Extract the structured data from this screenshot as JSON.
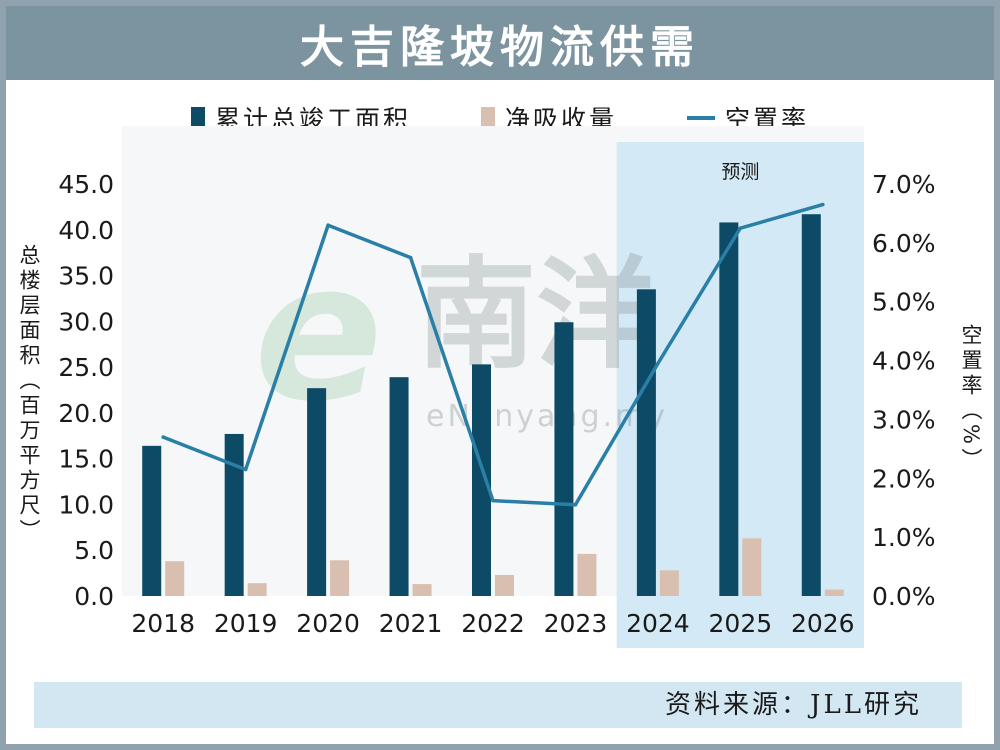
{
  "chart_data": {
    "type": "bar",
    "title": "大吉隆坡物流供需",
    "categories": [
      "2018",
      "2019",
      "2020",
      "2021",
      "2022",
      "2023",
      "2024",
      "2025",
      "2026"
    ],
    "series": [
      {
        "name": "累计总竣工面积",
        "kind": "bar",
        "axis": "left",
        "color": "#0d4a66",
        "values": [
          16.4,
          17.7,
          22.7,
          23.9,
          25.3,
          29.9,
          33.5,
          40.8,
          41.7
        ]
      },
      {
        "name": "净吸收量",
        "kind": "bar",
        "axis": "left",
        "color": "#d8bfb0",
        "values": [
          3.8,
          1.4,
          3.9,
          1.3,
          2.3,
          4.6,
          2.8,
          6.3,
          0.7
        ]
      },
      {
        "name": "空置率",
        "kind": "line",
        "axis": "right",
        "color": "#2a7fa6",
        "values": [
          2.7,
          2.15,
          6.3,
          5.75,
          1.62,
          1.55,
          3.95,
          6.25,
          6.65
        ]
      }
    ],
    "ylabel": "总楼层面积（百万平方尺）",
    "y2label": "空置率（%）",
    "ylim": [
      0,
      45
    ],
    "y2lim": [
      0,
      7
    ],
    "yticks": [
      "0.0",
      "5.0",
      "10.0",
      "15.0",
      "20.0",
      "25.0",
      "30.0",
      "35.0",
      "40.0",
      "45.0"
    ],
    "y2ticks": [
      "0.0%",
      "1.0%",
      "2.0%",
      "3.0%",
      "4.0%",
      "5.0%",
      "6.0%",
      "7.0%"
    ],
    "forecast_label": "预测",
    "forecast_start": "2024",
    "forecast_end": "2026",
    "grid": false,
    "legend_position": "top"
  },
  "watermark": {
    "brand": "南洋",
    "url": "eNanyang.my"
  },
  "source": "资料来源：JLL研究"
}
